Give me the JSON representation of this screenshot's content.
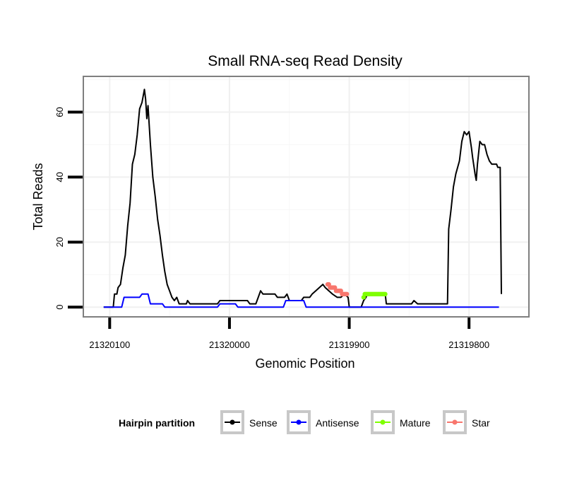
{
  "chart_data": {
    "type": "line",
    "title": "Small RNA-seq Read Density",
    "xlabel": "Genomic Position",
    "ylabel": "Total Reads",
    "x_reversed": true,
    "xlim": [
      21320122,
      21319750
    ],
    "ylim": [
      -3,
      71
    ],
    "x_ticks": [
      21320100,
      21320000,
      21319900,
      21319800
    ],
    "x_tick_labels": [
      "21320100",
      "21320000",
      "21319900",
      "21319800"
    ],
    "y_ticks": [
      0,
      20,
      40,
      60
    ],
    "y_tick_labels": [
      "0",
      "20",
      "40",
      "60"
    ],
    "grid": true,
    "legend": {
      "title": "Hairpin partition",
      "position": "bottom",
      "entries": [
        "Sense",
        "Antisense",
        "Mature",
        "Star"
      ]
    },
    "series": [
      {
        "name": "Sense",
        "color": "#000000",
        "markers": false,
        "points": [
          [
            21320105,
            0
          ],
          [
            21320097,
            0
          ],
          [
            21320096,
            4
          ],
          [
            21320094,
            4
          ],
          [
            21320093,
            6
          ],
          [
            21320091,
            7
          ],
          [
            21320089,
            12
          ],
          [
            21320087,
            16
          ],
          [
            21320085,
            25
          ],
          [
            21320083,
            32
          ],
          [
            21320081,
            44
          ],
          [
            21320079,
            47
          ],
          [
            21320077,
            53
          ],
          [
            21320075,
            61
          ],
          [
            21320073,
            63
          ],
          [
            21320071,
            67
          ],
          [
            21320070,
            64
          ],
          [
            21320069,
            58
          ],
          [
            21320068,
            62
          ],
          [
            21320066,
            50
          ],
          [
            21320064,
            40
          ],
          [
            21320062,
            34
          ],
          [
            21320060,
            27
          ],
          [
            21320058,
            22
          ],
          [
            21320056,
            16
          ],
          [
            21320054,
            11
          ],
          [
            21320052,
            7
          ],
          [
            21320050,
            5
          ],
          [
            21320048,
            3
          ],
          [
            21320046,
            2
          ],
          [
            21320044,
            3
          ],
          [
            21320042,
            1
          ],
          [
            21320036,
            1
          ],
          [
            21320035,
            2
          ],
          [
            21320033,
            1
          ],
          [
            21320010,
            1
          ],
          [
            21320008,
            2
          ],
          [
            21319985,
            2
          ],
          [
            21319983,
            1
          ],
          [
            21319978,
            1
          ],
          [
            21319976,
            3
          ],
          [
            21319974,
            5
          ],
          [
            21319972,
            4
          ],
          [
            21319962,
            4
          ],
          [
            21319960,
            3
          ],
          [
            21319954,
            3
          ],
          [
            21319952,
            4
          ],
          [
            21319950,
            2
          ],
          [
            21319940,
            2
          ],
          [
            21319938,
            3
          ],
          [
            21319933,
            3
          ],
          [
            21319931,
            4
          ],
          [
            21319928,
            5
          ],
          [
            21319925,
            6
          ],
          [
            21319922,
            7
          ],
          [
            21319920,
            6
          ],
          [
            21319917,
            5
          ],
          [
            21319914,
            4
          ],
          [
            21319910,
            3
          ],
          [
            21319907,
            3
          ],
          [
            21319904,
            4
          ],
          [
            21319901,
            3
          ],
          [
            21319900,
            0
          ],
          [
            21319890,
            0
          ],
          [
            21319888,
            2
          ],
          [
            21319886,
            3
          ],
          [
            21319885,
            4
          ],
          [
            21319870,
            4
          ],
          [
            21319869,
            1
          ],
          [
            21319848,
            1
          ],
          [
            21319846,
            2
          ],
          [
            21319843,
            1
          ],
          [
            21319830,
            1
          ],
          [
            21319826,
            1
          ],
          [
            21319818,
            1
          ],
          [
            21319817,
            24
          ],
          [
            21319815,
            30
          ],
          [
            21319813,
            37
          ],
          [
            21319811,
            41
          ],
          [
            21319808,
            45
          ],
          [
            21319806,
            51
          ],
          [
            21319804,
            54
          ],
          [
            21319802,
            53
          ],
          [
            21319800,
            54
          ],
          [
            21319798,
            49
          ],
          [
            21319797,
            46
          ],
          [
            21319795,
            41
          ],
          [
            21319794,
            39
          ],
          [
            21319793,
            44
          ],
          [
            21319791,
            51
          ],
          [
            21319789,
            50
          ],
          [
            21319787,
            50
          ],
          [
            21319785,
            47
          ],
          [
            21319783,
            45
          ],
          [
            21319781,
            44
          ],
          [
            21319777,
            44
          ],
          [
            21319776,
            43
          ],
          [
            21319774,
            43
          ],
          [
            21319773,
            4
          ]
        ]
      },
      {
        "name": "Antisense",
        "color": "#0000ff",
        "markers": false,
        "points": [
          [
            21320105,
            0
          ],
          [
            21320090,
            0
          ],
          [
            21320088,
            3
          ],
          [
            21320075,
            3
          ],
          [
            21320073,
            4
          ],
          [
            21320068,
            4
          ],
          [
            21320066,
            1
          ],
          [
            21320056,
            1
          ],
          [
            21320054,
            0
          ],
          [
            21320010,
            0
          ],
          [
            21320008,
            1
          ],
          [
            21319995,
            1
          ],
          [
            21319993,
            0
          ],
          [
            21319955,
            0
          ],
          [
            21319953,
            2
          ],
          [
            21319938,
            2
          ],
          [
            21319936,
            0
          ],
          [
            21319775,
            0
          ]
        ]
      },
      {
        "name": "Mature",
        "color": "#7fff00",
        "markers": true,
        "points": [
          [
            21319888,
            3
          ],
          [
            21319887,
            4
          ],
          [
            21319886,
            4
          ],
          [
            21319885,
            4
          ],
          [
            21319884,
            4
          ],
          [
            21319883,
            4
          ],
          [
            21319882,
            4
          ],
          [
            21319881,
            4
          ],
          [
            21319880,
            4
          ],
          [
            21319879,
            4
          ],
          [
            21319878,
            4
          ],
          [
            21319877,
            4
          ],
          [
            21319876,
            4
          ],
          [
            21319875,
            4
          ],
          [
            21319874,
            4
          ],
          [
            21319873,
            4
          ],
          [
            21319872,
            4
          ],
          [
            21319871,
            4
          ],
          [
            21319870,
            4
          ]
        ]
      },
      {
        "name": "Star",
        "color": "#f8766d",
        "markers": true,
        "points": [
          [
            21319918,
            7
          ],
          [
            21319917,
            7
          ],
          [
            21319916,
            6
          ],
          [
            21319915,
            6
          ],
          [
            21319914,
            6
          ],
          [
            21319913,
            6
          ],
          [
            21319912,
            6
          ],
          [
            21319911,
            5
          ],
          [
            21319910,
            5
          ],
          [
            21319909,
            5
          ],
          [
            21319908,
            5
          ],
          [
            21319907,
            5
          ],
          [
            21319906,
            4
          ],
          [
            21319905,
            4
          ],
          [
            21319904,
            4
          ],
          [
            21319903,
            4
          ],
          [
            21319902,
            4
          ]
        ]
      }
    ]
  }
}
